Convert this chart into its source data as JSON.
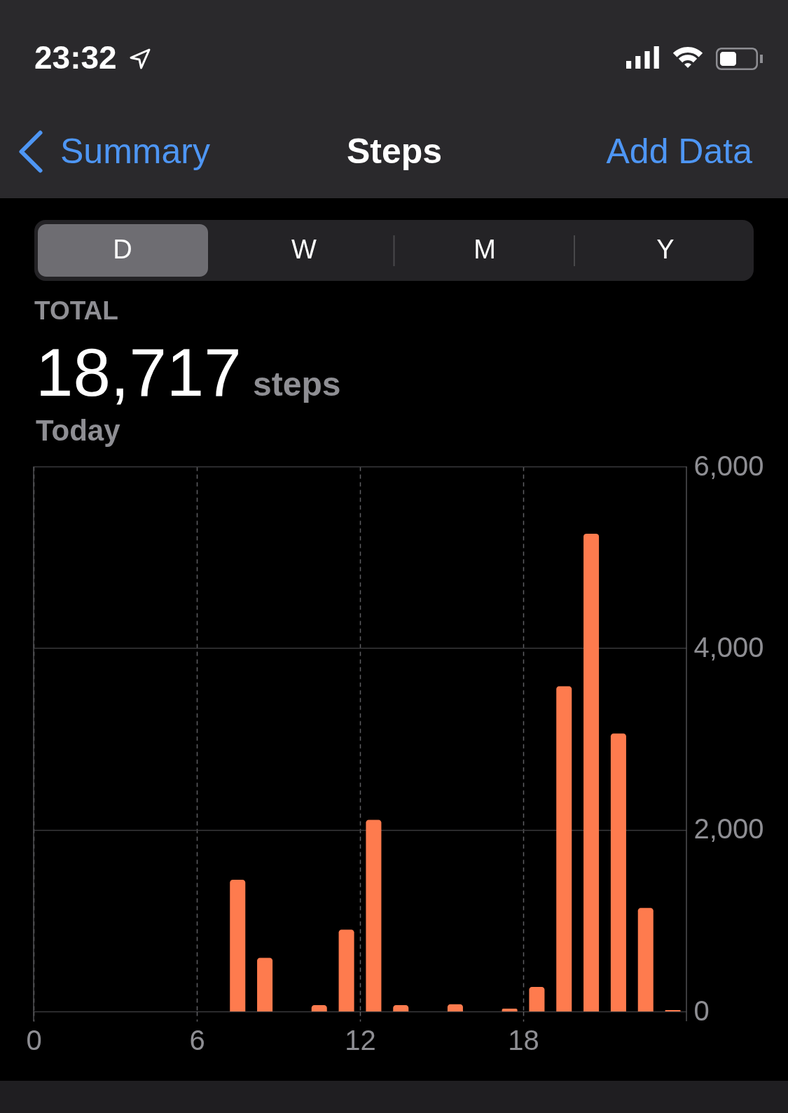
{
  "chart_data": {
    "type": "histogram",
    "title": "Steps",
    "annotations": [
      "23:32",
      "Summary",
      "Add Data",
      "D",
      "W",
      "M",
      "Y",
      "TOTAL",
      "18,717",
      "steps",
      "Today"
    ],
    "bins": [
      0,
      1,
      2,
      3,
      4,
      5,
      6,
      7,
      8,
      9,
      10,
      11,
      12,
      13,
      14,
      15,
      16,
      17,
      18,
      19,
      20,
      21,
      22,
      23,
      24
    ],
    "values": [
      null,
      null,
      null,
      null,
      null,
      null,
      null,
      1450,
      590,
      null,
      70,
      900,
      2110,
      70,
      null,
      80,
      null,
      30,
      270,
      3580,
      5260,
      3060,
      1140,
      15
    ],
    "color": "#fe7b4e",
    "xlim": [
      0,
      24
    ],
    "xticks": [
      0,
      6,
      12,
      18
    ],
    "ylim": [
      0,
      6000
    ],
    "yticks": [
      0,
      {
        "value": 2000,
        "label": "2,000"
      },
      {
        "value": 4000,
        "label": "4,000"
      },
      {
        "value": 6000,
        "label": "6,000"
      }
    ],
    "grid": true
  }
}
